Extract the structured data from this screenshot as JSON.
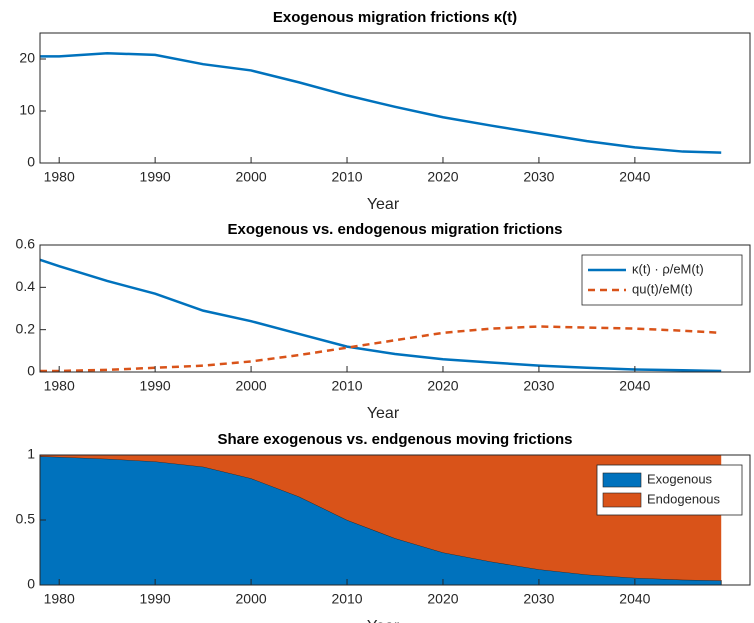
{
  "chart_data": [
    {
      "type": "line",
      "title": "Exogenous migration frictions κ(t)",
      "xlabel": "Year",
      "x": [
        1978,
        1980,
        1985,
        1990,
        1995,
        2000,
        2005,
        2010,
        2015,
        2020,
        2025,
        2030,
        2035,
        2040,
        2045,
        2049
      ],
      "series": [
        {
          "name": "κ(t)",
          "color": "#0072bd",
          "linestyle": "solid",
          "values": [
            20.5,
            20.5,
            21.1,
            20.8,
            19.0,
            17.8,
            15.5,
            13.0,
            10.8,
            8.8,
            7.2,
            5.7,
            4.2,
            3.0,
            2.2,
            2.0
          ]
        }
      ],
      "xlim": [
        1978,
        2052
      ],
      "xticks": [
        1980,
        1990,
        2000,
        2010,
        2020,
        2030,
        2040
      ],
      "ylim": [
        0,
        25
      ],
      "yticks": [
        0,
        10,
        20
      ],
      "legend": false
    },
    {
      "type": "line",
      "title": "Exogenous vs. endogenous migration frictions",
      "xlabel": "Year",
      "x": [
        1978,
        1980,
        1985,
        1990,
        1995,
        2000,
        2005,
        2010,
        2015,
        2020,
        2025,
        2030,
        2035,
        2040,
        2045,
        2049
      ],
      "series": [
        {
          "name": "κ(t) · ρ/eM(t)",
          "color": "#0072bd",
          "linestyle": "solid",
          "values": [
            0.53,
            0.5,
            0.43,
            0.37,
            0.29,
            0.24,
            0.18,
            0.12,
            0.085,
            0.06,
            0.045,
            0.03,
            0.02,
            0.012,
            0.008,
            0.005
          ]
        },
        {
          "name": "qu(t)/eM(t)",
          "color": "#d95319",
          "linestyle": "dashed",
          "values": [
            0.005,
            0.005,
            0.01,
            0.02,
            0.03,
            0.05,
            0.08,
            0.115,
            0.15,
            0.185,
            0.205,
            0.215,
            0.21,
            0.205,
            0.195,
            0.185
          ]
        }
      ],
      "xlim": [
        1978,
        2052
      ],
      "xticks": [
        1980,
        1990,
        2000,
        2010,
        2020,
        2030,
        2040
      ],
      "ylim": [
        0,
        0.6
      ],
      "yticks": [
        0,
        0.2,
        0.4,
        0.6
      ],
      "legend": "upper right"
    },
    {
      "type": "stacked_area",
      "title": "Share exogenous vs. endgenous moving frictions",
      "xlabel": "Year",
      "x": [
        1978,
        1980,
        1985,
        1990,
        1995,
        2000,
        2005,
        2010,
        2015,
        2020,
        2025,
        2030,
        2035,
        2040,
        2045,
        2049
      ],
      "series": [
        {
          "name": "Exogenous",
          "color": "#0072bd",
          "values": [
            0.99,
            0.985,
            0.97,
            0.95,
            0.91,
            0.82,
            0.68,
            0.5,
            0.36,
            0.25,
            0.18,
            0.12,
            0.08,
            0.055,
            0.04,
            0.035
          ]
        },
        {
          "name": "Endogenous",
          "color": "#d95319",
          "values": [
            0.01,
            0.015,
            0.03,
            0.05,
            0.09,
            0.18,
            0.32,
            0.5,
            0.64,
            0.75,
            0.82,
            0.88,
            0.92,
            0.945,
            0.96,
            0.965
          ]
        }
      ],
      "xlim": [
        1978,
        2052
      ],
      "xticks": [
        1980,
        1990,
        2000,
        2010,
        2020,
        2030,
        2040
      ],
      "ylim": [
        0,
        1
      ],
      "yticks": [
        0,
        0.5,
        1
      ],
      "legend": "upper right"
    }
  ]
}
